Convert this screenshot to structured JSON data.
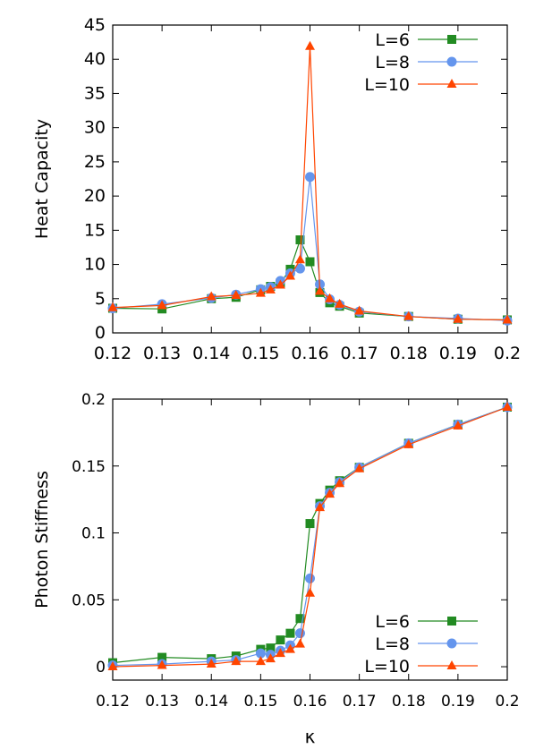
{
  "colors": {
    "L6": "#228b22",
    "L8": "#6495ed",
    "L10": "#ff4500",
    "axis": "#000000"
  },
  "chart_data": [
    {
      "type": "line",
      "ylabel": "Heat Capacity",
      "xlabel": "",
      "xlim": [
        0.12,
        0.2
      ],
      "ylim": [
        0,
        45
      ],
      "x_ticks": [
        "0.12",
        "0.13",
        "0.14",
        "0.15",
        "0.16",
        "0.17",
        "0.18",
        "0.19",
        "0.2"
      ],
      "y_ticks": [
        "0",
        "5",
        "10",
        "15",
        "20",
        "25",
        "30",
        "35",
        "40",
        "45"
      ],
      "grid": false,
      "legend_position": "top-right",
      "series": [
        {
          "name": "L=6",
          "marker": "square",
          "color_key": "L6",
          "x": [
            0.12,
            0.13,
            0.14,
            0.145,
            0.15,
            0.152,
            0.154,
            0.156,
            0.158,
            0.16,
            0.162,
            0.164,
            0.166,
            0.17,
            0.18,
            0.19,
            0.2
          ],
          "y": [
            3.6,
            3.5,
            5.0,
            5.2,
            6.3,
            6.8,
            7.3,
            9.3,
            13.6,
            10.4,
            5.9,
            4.4,
            3.9,
            2.9,
            2.4,
            2.0,
            1.9
          ]
        },
        {
          "name": "L=8",
          "marker": "circle",
          "color_key": "L8",
          "x": [
            0.12,
            0.13,
            0.14,
            0.145,
            0.15,
            0.152,
            0.154,
            0.156,
            0.158,
            0.16,
            0.162,
            0.164,
            0.166,
            0.17,
            0.18,
            0.19,
            0.2
          ],
          "y": [
            3.6,
            4.2,
            5.1,
            5.6,
            6.4,
            6.7,
            7.6,
            8.7,
            9.4,
            22.8,
            7.1,
            4.9,
            4.1,
            3.1,
            2.4,
            2.1,
            1.8
          ]
        },
        {
          "name": "L=10",
          "marker": "triangle",
          "color_key": "L10",
          "x": [
            0.12,
            0.13,
            0.14,
            0.145,
            0.15,
            0.152,
            0.154,
            0.156,
            0.158,
            0.16,
            0.162,
            0.164,
            0.166,
            0.17,
            0.18,
            0.19,
            0.2
          ],
          "y": [
            3.7,
            4.0,
            5.3,
            5.5,
            5.8,
            6.3,
            7.0,
            8.3,
            10.7,
            41.9,
            6.1,
            5.0,
            4.2,
            3.2,
            2.4,
            2.0,
            1.9
          ]
        }
      ]
    },
    {
      "type": "line",
      "ylabel": "Photon Stiffness",
      "xlabel": "κ",
      "xlim": [
        0.12,
        0.2
      ],
      "ylim": [
        -0.01,
        0.2
      ],
      "x_ticks": [
        "0.12",
        "0.13",
        "0.14",
        "0.15",
        "0.16",
        "0.17",
        "0.18",
        "0.19",
        "0.2"
      ],
      "y_ticks": [
        "0",
        "0.05",
        "0.1",
        "0.15",
        "0.2"
      ],
      "grid": false,
      "legend_position": "bottom-right",
      "series": [
        {
          "name": "L=6",
          "marker": "square",
          "color_key": "L6",
          "x": [
            0.12,
            0.13,
            0.14,
            0.145,
            0.15,
            0.152,
            0.154,
            0.156,
            0.158,
            0.16,
            0.162,
            0.164,
            0.166,
            0.17,
            0.18,
            0.19,
            0.2
          ],
          "y": [
            0.003,
            0.007,
            0.006,
            0.008,
            0.013,
            0.014,
            0.02,
            0.025,
            0.036,
            0.107,
            0.122,
            0.132,
            0.139,
            0.149,
            0.167,
            0.181,
            0.194
          ]
        },
        {
          "name": "L=8",
          "marker": "circle",
          "color_key": "L8",
          "x": [
            0.12,
            0.13,
            0.14,
            0.145,
            0.15,
            0.152,
            0.154,
            0.156,
            0.158,
            0.16,
            0.162,
            0.164,
            0.166,
            0.17,
            0.18,
            0.19,
            0.2
          ],
          "y": [
            0.001,
            0.002,
            0.004,
            0.005,
            0.01,
            0.009,
            0.012,
            0.016,
            0.025,
            0.066,
            0.12,
            0.13,
            0.138,
            0.149,
            0.167,
            0.181,
            0.194
          ]
        },
        {
          "name": "L=10",
          "marker": "triangle",
          "color_key": "L10",
          "x": [
            0.12,
            0.13,
            0.14,
            0.145,
            0.15,
            0.152,
            0.154,
            0.156,
            0.158,
            0.16,
            0.162,
            0.164,
            0.166,
            0.17,
            0.18,
            0.19,
            0.2
          ],
          "y": [
            0.0,
            0.001,
            0.002,
            0.004,
            0.004,
            0.006,
            0.01,
            0.013,
            0.017,
            0.055,
            0.119,
            0.129,
            0.137,
            0.148,
            0.166,
            0.18,
            0.194
          ]
        }
      ]
    }
  ]
}
